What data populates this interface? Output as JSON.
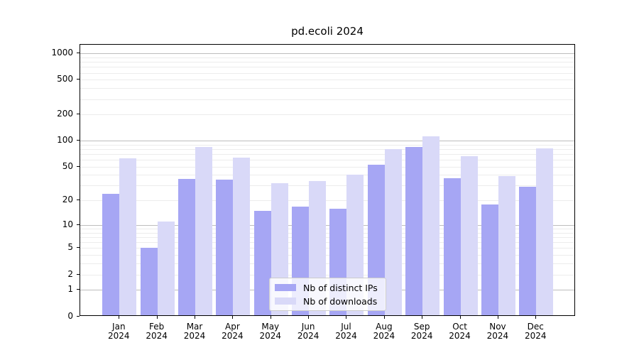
{
  "title": "pd.ecoli 2024",
  "chart_data": {
    "type": "bar",
    "title": "pd.ecoli 2024",
    "categories": [
      "Jan",
      "Feb",
      "Mar",
      "Apr",
      "May",
      "Jun",
      "Jul",
      "Aug",
      "Sep",
      "Oct",
      "Nov",
      "Dec"
    ],
    "x_tick_second_line": "2024",
    "series": [
      {
        "name": "Nb of distinct IPs",
        "color": "#a6a6f4",
        "values": [
          24,
          5,
          36,
          35,
          15,
          17,
          16,
          53,
          85,
          37,
          18,
          29
        ]
      },
      {
        "name": "Nb of downloads",
        "color": "#d9d9f8",
        "values": [
          63,
          11,
          84,
          64,
          32,
          34,
          40,
          80,
          112,
          66,
          39,
          82
        ]
      }
    ],
    "yscale": "log1p",
    "ylim": [
      0,
      1255
    ],
    "y_ticks": [
      0,
      1,
      2,
      5,
      10,
      20,
      50,
      100,
      200,
      500,
      1000
    ],
    "y_major_gridlines": [
      1,
      10,
      100,
      1000
    ],
    "y_minor_gridlines": [
      2,
      3,
      4,
      5,
      6,
      7,
      8,
      9,
      20,
      30,
      40,
      50,
      60,
      70,
      80,
      90,
      200,
      300,
      400,
      500,
      600,
      700,
      800,
      900
    ],
    "xlabel": "",
    "ylabel": "",
    "grid": "horizontal major+minor",
    "legend_position": "lower center"
  }
}
